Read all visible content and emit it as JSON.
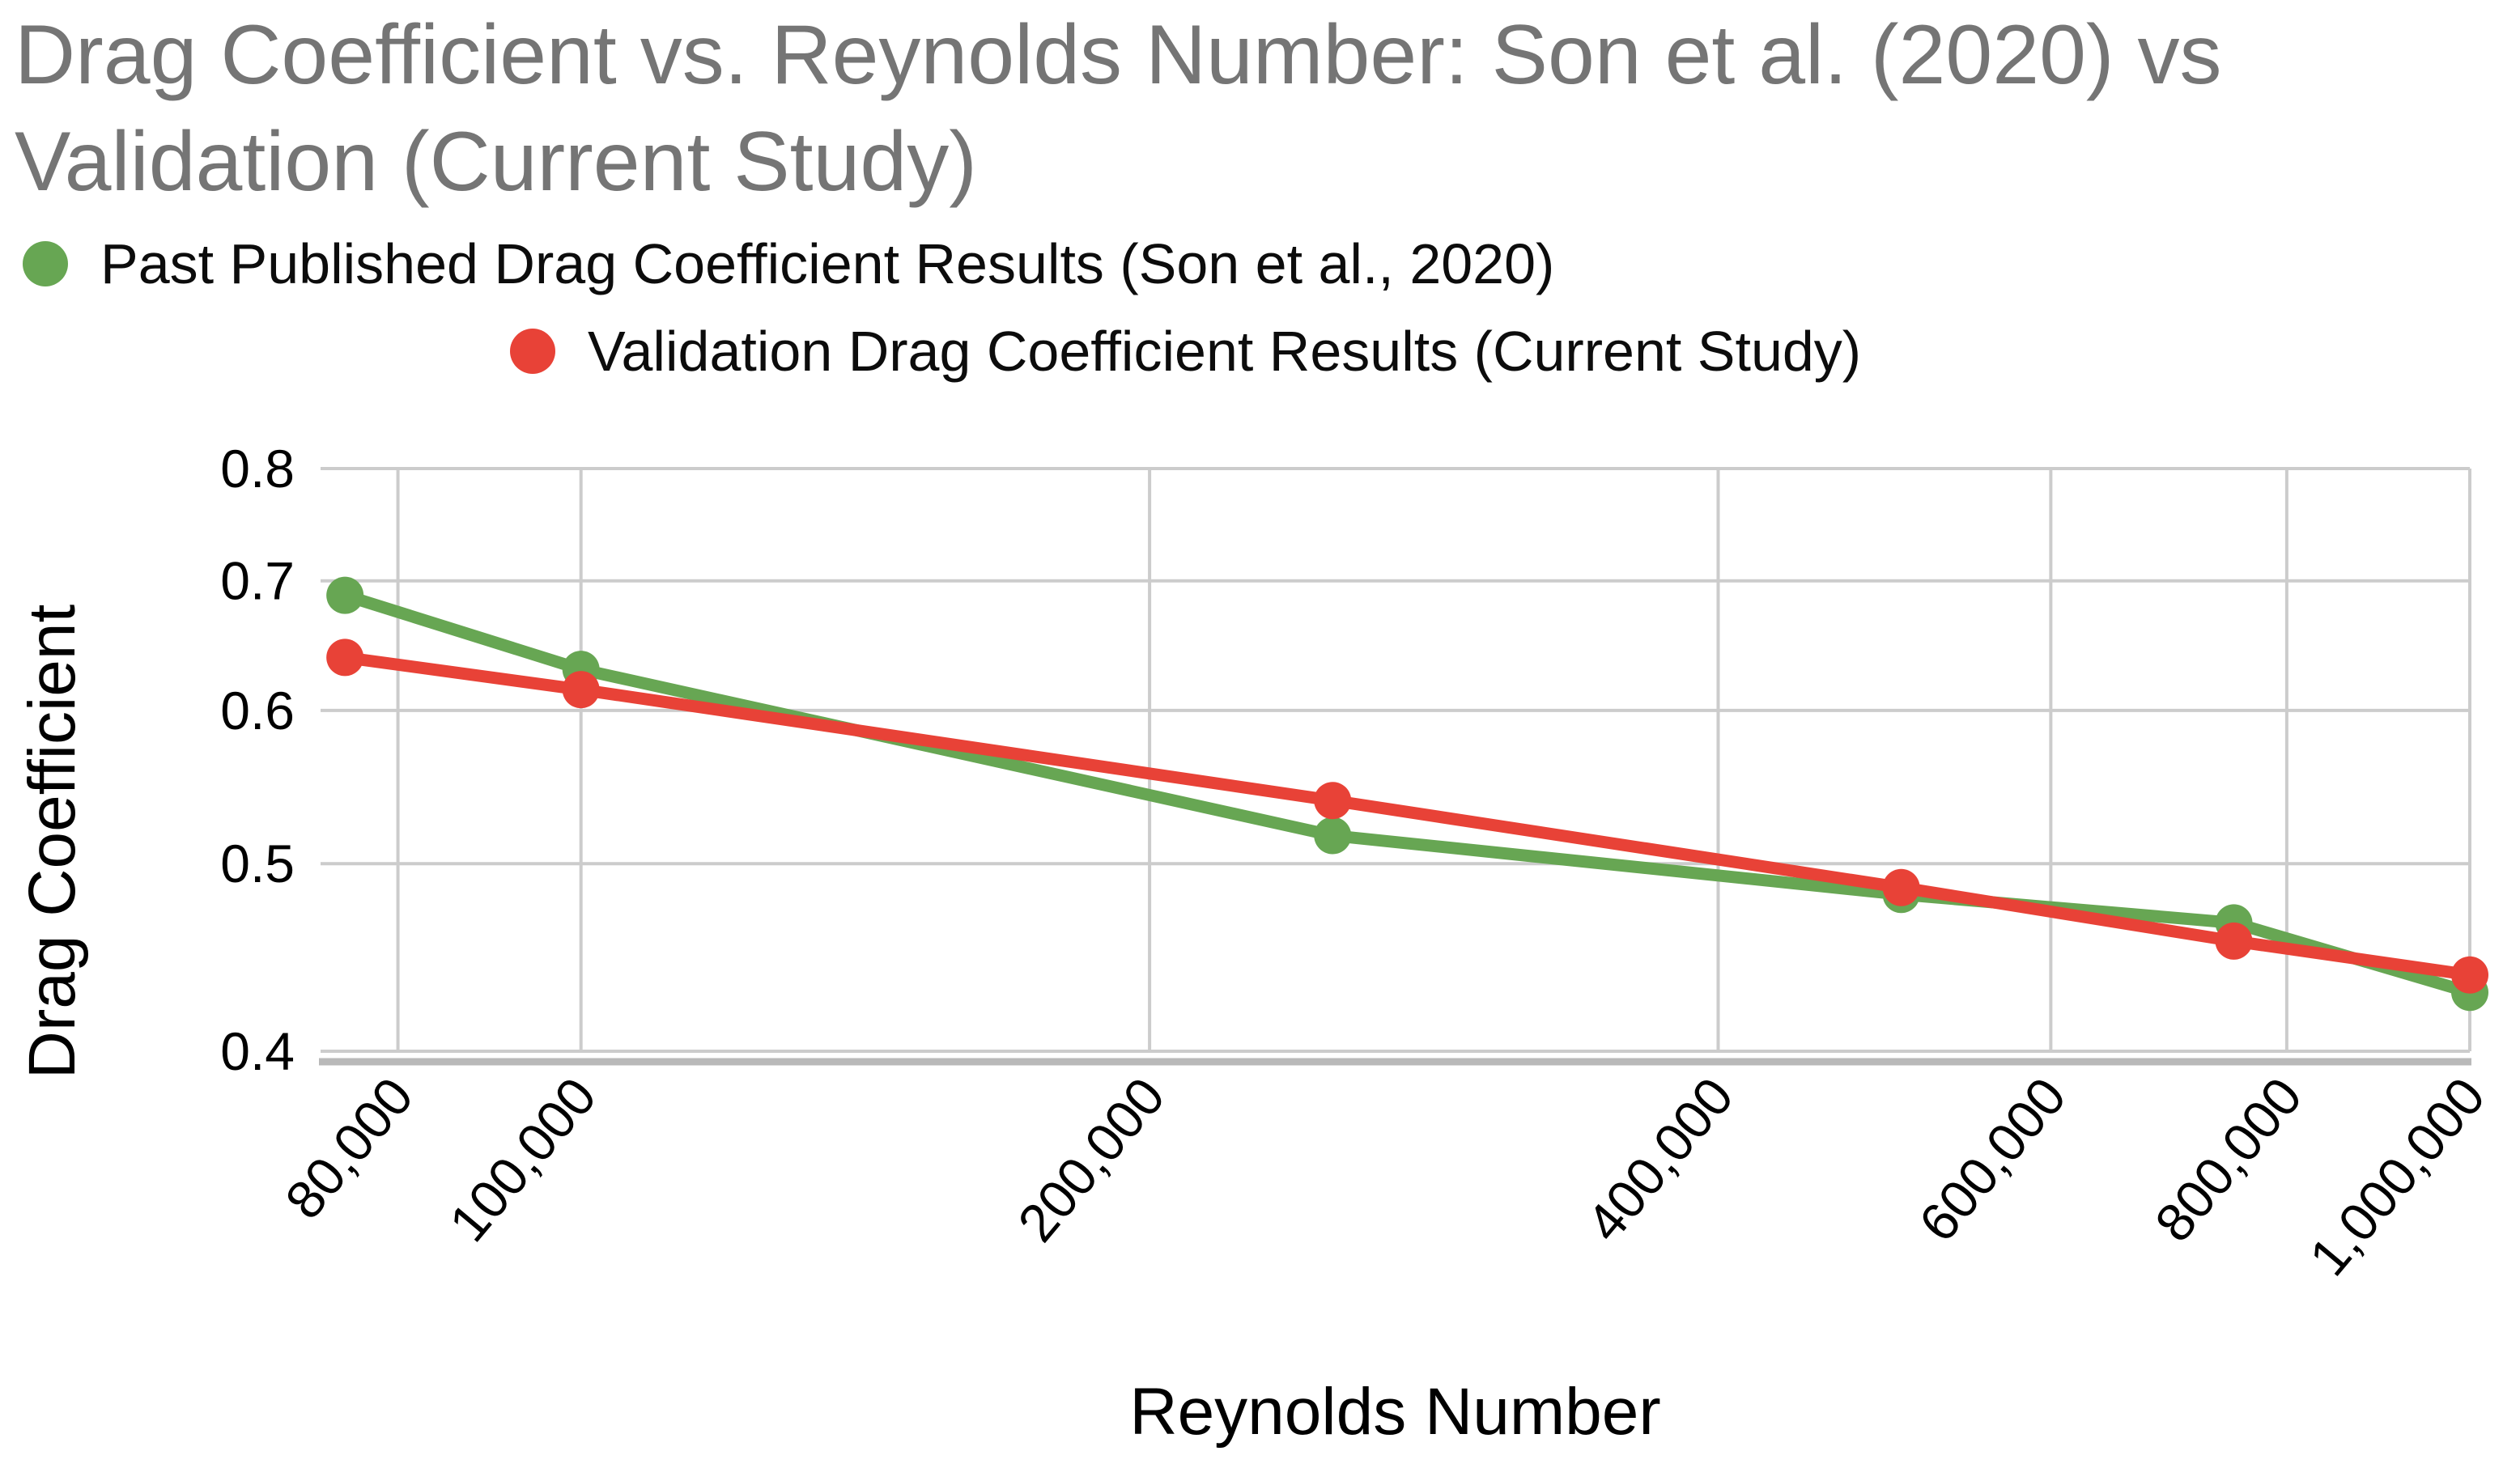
{
  "title_lines": [
    "Drag Coefficient vs. Reynolds Number: Son et al. (2020) vs",
    "Validation (Current Study)"
  ],
  "title_color": "#757575",
  "legend": {
    "items": [
      {
        "label": "Past Published Drag Coefficient Results (Son et al., 2020)",
        "color": "#67a653"
      },
      {
        "label": "Validation Drag Coefficient Results (Current Study)",
        "color": "#e84237"
      }
    ]
  },
  "chart_data": {
    "type": "line",
    "title": "Drag Coefficient vs. Reynolds Number: Son et al. (2020) vs Validation (Current Study)",
    "xlabel": "Reynolds Number",
    "ylabel": "Drag Coefficient",
    "x_scale": "log",
    "y_scale": "log",
    "xlim": [
      72800,
      1000000
    ],
    "ylim": [
      0.4,
      0.8
    ],
    "grid": true,
    "gridline_color": "#cccccc",
    "axis_line_color": "#b9b9b9",
    "legend_position": "top",
    "x_ticks": [
      {
        "value": 80000,
        "label": "80,000"
      },
      {
        "value": 100000,
        "label": "100,000"
      },
      {
        "value": 200000,
        "label": "200,000"
      },
      {
        "value": 400000,
        "label": "400,000"
      },
      {
        "value": 600000,
        "label": "600,000"
      },
      {
        "value": 800000,
        "label": "800,000"
      },
      {
        "value": 1000000,
        "label": "1,000,000"
      }
    ],
    "y_ticks": [
      {
        "value": 0.8,
        "label": "0.8"
      },
      {
        "value": 0.7,
        "label": "0.7"
      },
      {
        "value": 0.6,
        "label": "0.6"
      },
      {
        "value": 0.5,
        "label": "0.5"
      },
      {
        "value": 0.4,
        "label": "0.4"
      }
    ],
    "x": [
      75000,
      100000,
      250000,
      500000,
      750000,
      1000000
    ],
    "series": [
      {
        "name": "Past Published Drag Coefficient Results (Son et al., 2020)",
        "color": "#67a653",
        "values": [
          0.688,
          0.63,
          0.517,
          0.482,
          0.466,
          0.429
        ]
      },
      {
        "name": "Validation Drag Coefficient Results (Current Study)",
        "color": "#e84237",
        "values": [
          0.639,
          0.615,
          0.539,
          0.486,
          0.456,
          0.438
        ]
      }
    ]
  }
}
